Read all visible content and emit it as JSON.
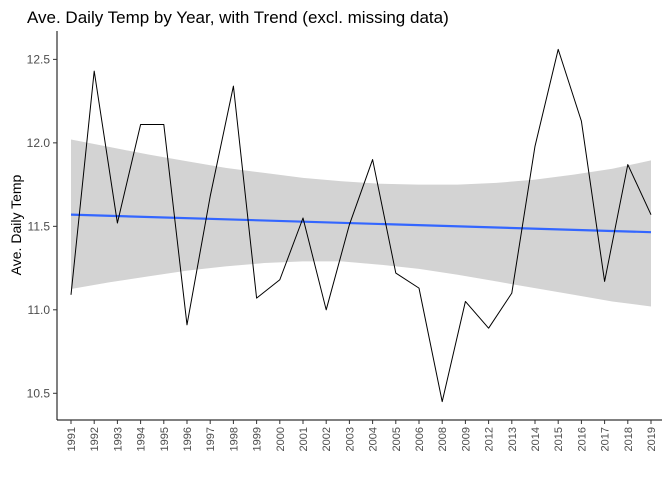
{
  "chart_data": {
    "type": "line",
    "title": "Ave. Daily Temp by Year, with Trend (excl. missing data)",
    "xlabel": "",
    "ylabel": "Ave. Daily Temp",
    "categories": [
      "1991",
      "1992",
      "1993",
      "1994",
      "1995",
      "1996",
      "1997",
      "1998",
      "1999",
      "2000",
      "2001",
      "2002",
      "2003",
      "2004",
      "2005",
      "2006",
      "2008",
      "2009",
      "2012",
      "2013",
      "2014",
      "2015",
      "2016",
      "2017",
      "2018",
      "2019"
    ],
    "series": [
      {
        "values": [
          11.09,
          12.43,
          11.52,
          12.11,
          12.11,
          10.91,
          11.68,
          12.34,
          11.07,
          11.18,
          11.55,
          11.0,
          11.51,
          11.9,
          11.22,
          11.13,
          10.45,
          11.05,
          10.89,
          11.1,
          11.98,
          12.56,
          12.13,
          11.17,
          11.87,
          11.57
        ],
        "color": "#000000"
      }
    ],
    "trend": {
      "start": 11.57,
      "end": 11.465,
      "color": "#3366ff",
      "band_upper": [
        12.02,
        11.975,
        11.93,
        11.89,
        11.85,
        11.82,
        11.79,
        11.77,
        11.755,
        11.75,
        11.75,
        11.76,
        11.78,
        11.81,
        11.845,
        11.895
      ],
      "band_lower": [
        11.125,
        11.165,
        11.2,
        11.235,
        11.26,
        11.28,
        11.29,
        11.29,
        11.27,
        11.245,
        11.21,
        11.17,
        11.13,
        11.09,
        11.05,
        11.02
      ],
      "band_color": "#d3d3d3"
    },
    "yticks": [
      10.5,
      11.0,
      11.5,
      12.0,
      12.5
    ],
    "ytick_labels": [
      "10.5",
      "11.0",
      "11.5",
      "12.0",
      "12.5"
    ],
    "ylim": [
      10.34,
      12.67
    ],
    "grid": false,
    "legend": "none"
  }
}
